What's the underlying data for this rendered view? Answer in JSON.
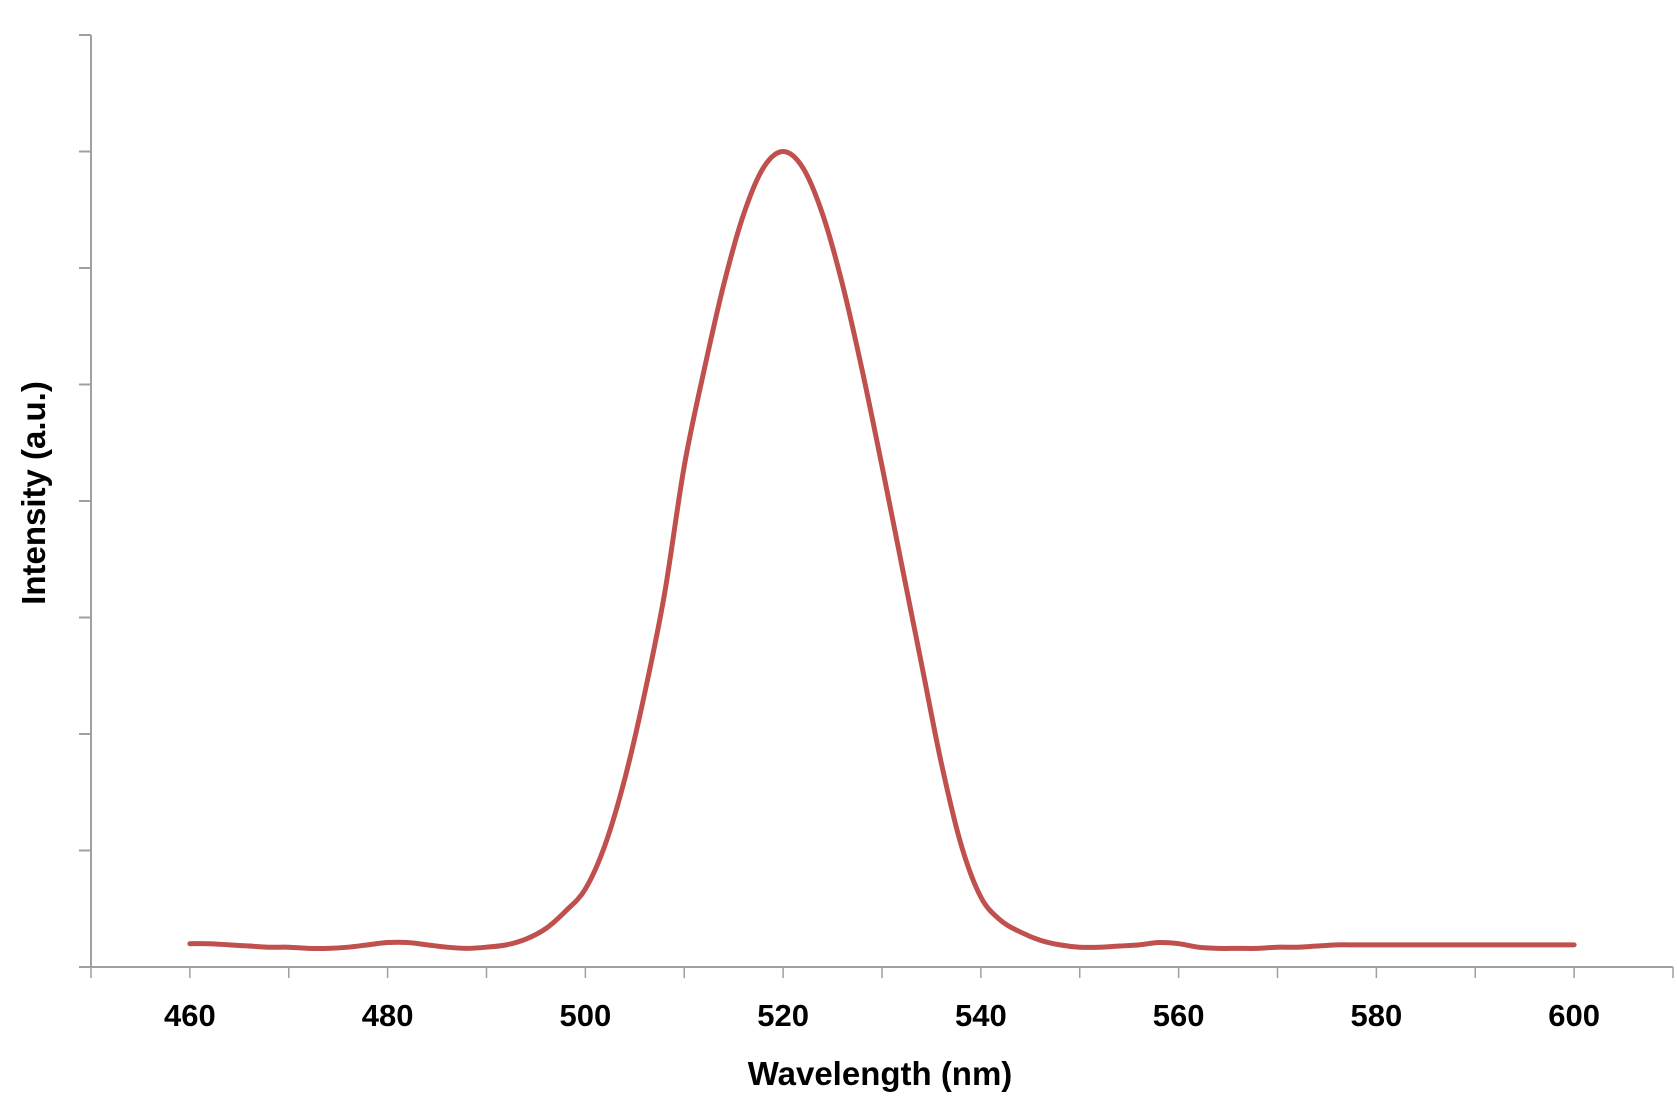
{
  "chart_data": {
    "type": "line",
    "title": "",
    "xlabel": "Wavelength (nm)",
    "ylabel": "Intensity (a.u.)",
    "xlim": [
      450,
      610
    ],
    "ylim": [
      0,
      8
    ],
    "x_major_ticks": [
      460,
      480,
      500,
      520,
      540,
      560,
      580,
      600
    ],
    "x_tick_labels": [
      "460",
      "480",
      "500",
      "520",
      "540",
      "560",
      "580",
      "600"
    ],
    "x_minor_step": 10,
    "y_ticks": [
      0,
      1,
      2,
      3,
      4,
      5,
      6,
      7,
      8
    ],
    "y_tick_labels_shown": false,
    "grid": false,
    "legend": "none",
    "line_color": "#c0504d",
    "axis_color": "#a0a0a0",
    "series": [
      {
        "x": [
          460,
          462,
          464,
          466,
          468,
          470,
          472,
          474,
          476,
          478,
          480,
          482,
          484,
          486,
          488,
          490,
          492,
          494,
          496,
          498,
          500,
          502,
          504,
          506,
          508,
          510,
          512,
          514,
          516,
          518,
          520,
          522,
          524,
          526,
          528,
          530,
          532,
          534,
          536,
          538,
          540,
          542,
          544,
          546,
          548,
          550,
          552,
          554,
          556,
          558,
          560,
          562,
          564,
          566,
          568,
          570,
          572,
          574,
          576,
          578,
          580,
          582,
          584,
          586,
          588,
          590,
          592,
          594,
          596,
          598,
          600
        ],
        "y": [
          0.2,
          0.2,
          0.19,
          0.18,
          0.17,
          0.17,
          0.16,
          0.16,
          0.17,
          0.19,
          0.21,
          0.21,
          0.19,
          0.17,
          0.16,
          0.17,
          0.19,
          0.24,
          0.33,
          0.48,
          0.67,
          1.05,
          1.62,
          2.35,
          3.2,
          4.3,
          5.12,
          5.86,
          6.46,
          6.86,
          7.0,
          6.86,
          6.46,
          5.86,
          5.12,
          4.3,
          3.45,
          2.6,
          1.75,
          1.05,
          0.6,
          0.4,
          0.3,
          0.23,
          0.19,
          0.17,
          0.17,
          0.18,
          0.19,
          0.21,
          0.2,
          0.17,
          0.16,
          0.16,
          0.16,
          0.17,
          0.17,
          0.18,
          0.19,
          0.19,
          0.19,
          0.19,
          0.19,
          0.19,
          0.19,
          0.19,
          0.19,
          0.19,
          0.19,
          0.19,
          0.19
        ]
      }
    ]
  }
}
